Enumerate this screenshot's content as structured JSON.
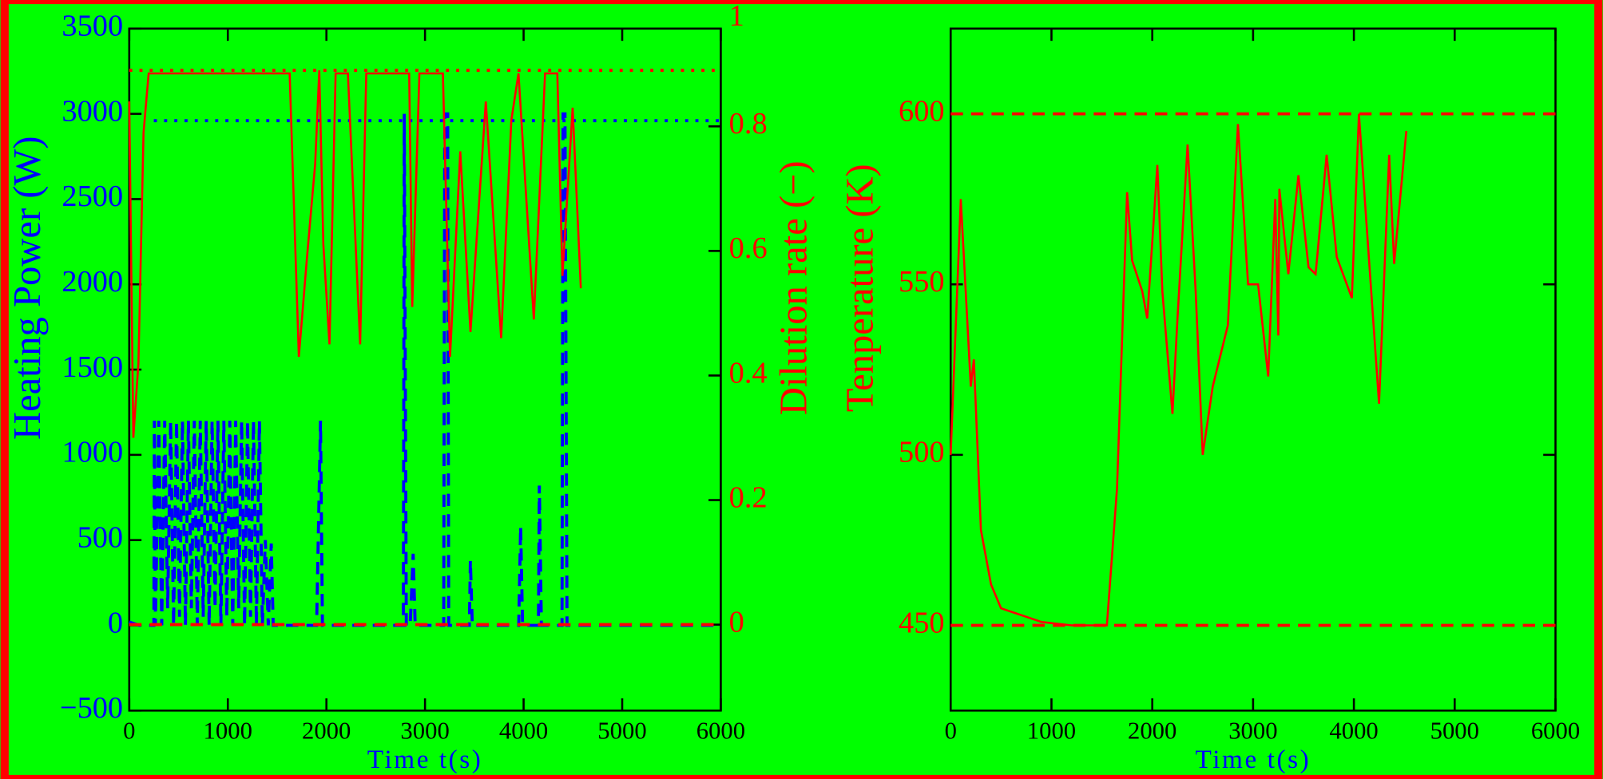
{
  "chart_data": [
    {
      "type": "line",
      "xlabel": "Time t(s)",
      "ylabel": "Heating Power (W)",
      "y2label": "Dilution rate (−)",
      "xlim": [
        0,
        6000
      ],
      "xticks": [
        0,
        1000,
        2000,
        3000,
        4000,
        5000,
        6000
      ],
      "ylim": [
        -500,
        3500
      ],
      "yticks": [
        {
          "value": -500,
          "label": "−500"
        },
        0,
        500,
        1000,
        1500,
        2000,
        2500,
        3000,
        3500
      ],
      "y2lim": [
        -0.138,
        0.957
      ],
      "y2ticks": [
        0,
        0.2,
        0.4,
        0.6,
        0.8,
        1
      ],
      "series": [
        {
          "color": "#0000ff",
          "dash": "dashed",
          "x": [
            0,
            100,
            200,
            250,
            255,
            265,
            300,
            330,
            360,
            390,
            420,
            450,
            480,
            510,
            540,
            570,
            600,
            630,
            660,
            690,
            720,
            750,
            780,
            810,
            840,
            870,
            900,
            930,
            960,
            990,
            1020,
            1050,
            1080,
            1110,
            1140,
            1170,
            1200,
            1230,
            1260,
            1290,
            1320,
            1350,
            1380,
            1410,
            1440,
            1460,
            1900,
            1940,
            1960,
            2780,
            2790,
            2810,
            2850,
            2880,
            2900,
            3190,
            3200,
            3230,
            3240,
            3450,
            3460,
            3480,
            3950,
            3970,
            3990,
            4150,
            4160,
            4180,
            4390,
            4400,
            4420,
            4440,
            6000
          ],
          "values": [
            20,
            0,
            0,
            0,
            1200,
            0,
            1200,
            0,
            1200,
            100,
            1200,
            0,
            1200,
            50,
            1200,
            0,
            1200,
            100,
            1200,
            0,
            1200,
            50,
            1200,
            0,
            1200,
            100,
            1200,
            0,
            1200,
            50,
            1200,
            0,
            1200,
            100,
            1200,
            0,
            1200,
            50,
            1200,
            0,
            1200,
            0,
            500,
            0,
            480,
            0,
            0,
            1200,
            0,
            0,
            3000,
            0,
            0,
            420,
            0,
            0,
            3000,
            3000,
            0,
            0,
            380,
            0,
            0,
            580,
            0,
            0,
            820,
            0,
            0,
            3000,
            3000,
            0,
            0
          ]
        },
        {
          "color": "#0000ff",
          "dash": "dotted",
          "x": [
            250,
            6000
          ],
          "values": [
            2960,
            2960
          ]
        },
        {
          "color": "#ff0000",
          "dash": "solid",
          "axis": "y2",
          "x": [
            0,
            41,
            93,
            145,
            197,
            1440,
            1627,
            1720,
            1803,
            1886,
            1927,
            1969,
            2031,
            2093,
            2218,
            2342,
            2404,
            2839,
            2870,
            2943,
            3181,
            3254,
            3358,
            3461,
            3617,
            3772,
            3876,
            3948,
            4104,
            4218,
            4342,
            4394,
            4497,
            4580
          ],
          "values": [
            0.84,
            0.3,
            0.42,
            0.79,
            0.885,
            0.885,
            0.885,
            0.43,
            0.59,
            0.74,
            0.89,
            0.61,
            0.45,
            0.885,
            0.885,
            0.45,
            0.885,
            0.885,
            0.51,
            0.885,
            0.885,
            0.43,
            0.76,
            0.47,
            0.84,
            0.46,
            0.81,
            0.885,
            0.49,
            0.885,
            0.885,
            0.56,
            0.83,
            0.54
          ]
        },
        {
          "color": "#ff0000",
          "dash": "dotted",
          "axis": "y2",
          "x": [
            0,
            6000
          ],
          "values": [
            0.89,
            0.89
          ]
        },
        {
          "color": "#ff0000",
          "dash": "dashed",
          "axis": "y2",
          "x": [
            0,
            6000
          ],
          "values": [
            0,
            0
          ]
        }
      ]
    },
    {
      "type": "line",
      "xlabel": "Time t(s)",
      "ylabel": "Tenperature (K)",
      "xlim": [
        0,
        6000
      ],
      "xticks": [
        0,
        1000,
        2000,
        3000,
        4000,
        5000,
        6000
      ],
      "ylim": [
        425,
        625
      ],
      "yticks": [
        450,
        500,
        550,
        600
      ],
      "series": [
        {
          "color": "#ff0000",
          "dash": "solid",
          "x": [
            0,
            100,
            200,
            230,
            300,
            400,
            500,
            700,
            900,
            1200,
            1550,
            1650,
            1750,
            1800,
            1900,
            1950,
            2050,
            2100,
            2200,
            2250,
            2350,
            2430,
            2500,
            2600,
            2750,
            2850,
            2950,
            3050,
            3150,
            3220,
            3250,
            3260,
            3350,
            3450,
            3550,
            3620,
            3730,
            3830,
            3980,
            4050,
            4120,
            4250,
            4350,
            4400,
            4520
          ],
          "values": [
            500,
            575,
            520,
            528,
            478,
            462,
            455,
            453,
            451,
            450,
            450,
            490,
            577,
            557,
            548,
            540,
            585,
            548,
            512,
            540,
            591,
            548,
            500,
            520,
            538,
            597,
            550,
            550,
            523,
            575,
            535,
            578,
            553,
            582,
            555,
            553,
            588,
            558,
            546,
            600,
            570,
            515,
            588,
            556,
            595
          ]
        },
        {
          "color": "#ff0000",
          "dash": "dashed",
          "x": [
            0,
            6000
          ],
          "values": [
            600,
            600
          ]
        },
        {
          "color": "#ff0000",
          "dash": "dashed",
          "x": [
            0,
            6000
          ],
          "values": [
            450,
            450
          ]
        }
      ]
    }
  ]
}
